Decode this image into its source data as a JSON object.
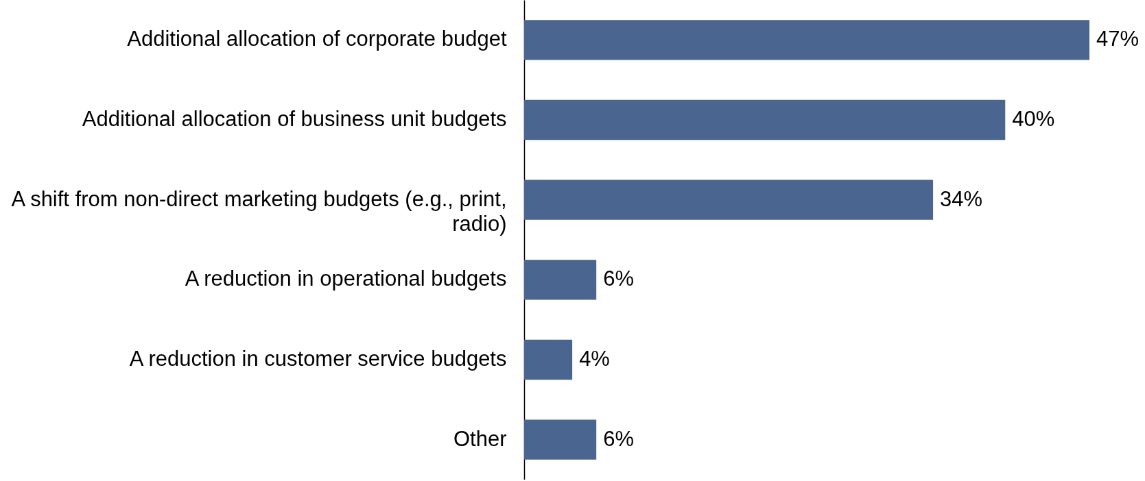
{
  "chart_data": {
    "type": "bar",
    "orientation": "horizontal",
    "categories": [
      "Additional allocation of corporate budget",
      "Additional allocation of business unit budgets",
      "A shift from non-direct marketing budgets (e.g., print, radio)",
      "A reduction in operational budgets",
      "A reduction in customer service budgets",
      "Other"
    ],
    "values": [
      47,
      40,
      34,
      6,
      4,
      6
    ],
    "value_labels": [
      "47%",
      "40%",
      "34%",
      "6%",
      "4%",
      "6%"
    ],
    "color": "#4a658f"
  }
}
